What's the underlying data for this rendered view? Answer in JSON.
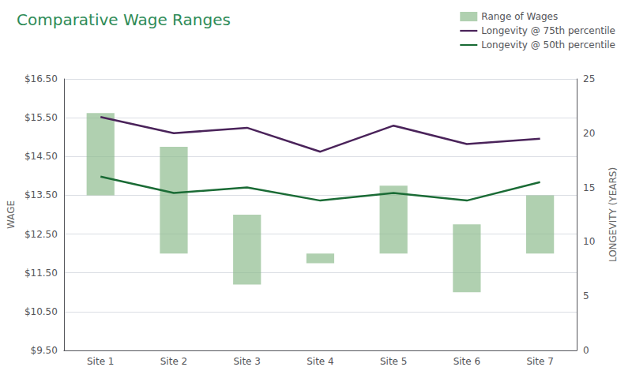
{
  "chart_data": {
    "type": "bar",
    "title": "Comparative Wage Ranges",
    "categories": [
      "Site 1",
      "Site 2",
      "Site 3",
      "Site 4",
      "Site 5",
      "Site 6",
      "Site 7"
    ],
    "series": [
      {
        "name": "Range of Wages",
        "type": "bar",
        "color": "#8fbc8f",
        "bottoms": [
          13.5,
          12.0,
          11.2,
          11.75,
          12.0,
          11.0,
          12.0
        ],
        "values": [
          15.62,
          14.75,
          13.0,
          12.0,
          13.75,
          12.75,
          13.5
        ]
      },
      {
        "name": "Longevity @ 75th percentile",
        "type": "line",
        "color": "#4a235a",
        "axis": "y2",
        "values": [
          21.5,
          20.0,
          20.5,
          18.3,
          20.7,
          19.0,
          19.5
        ]
      },
      {
        "name": "Longevity @ 50th percentile",
        "type": "line",
        "color": "#1a6b35",
        "axis": "y2",
        "values": [
          16.0,
          14.5,
          15.0,
          13.8,
          14.5,
          13.8,
          15.5
        ]
      }
    ],
    "ylabel": "WAGE",
    "y2label": "LONGEVITY (YEARS)",
    "ylim": [
      9.5,
      16.5
    ],
    "yticks": [
      {
        "value": 9.5,
        "label": "$9.50"
      },
      {
        "value": 10.5,
        "label": "$10.50"
      },
      {
        "value": 11.5,
        "label": "$11.50"
      },
      {
        "value": 12.5,
        "label": "$12.50"
      },
      {
        "value": 13.5,
        "label": "$13.50"
      },
      {
        "value": 14.5,
        "label": "$14.50"
      },
      {
        "value": 15.5,
        "label": "$15.50"
      },
      {
        "value": 16.5,
        "label": "$16.50"
      }
    ],
    "y2lim": [
      0,
      25
    ],
    "y2ticks": [
      0,
      5,
      10,
      15,
      20,
      25
    ],
    "grid": true,
    "legend": "upper right"
  }
}
